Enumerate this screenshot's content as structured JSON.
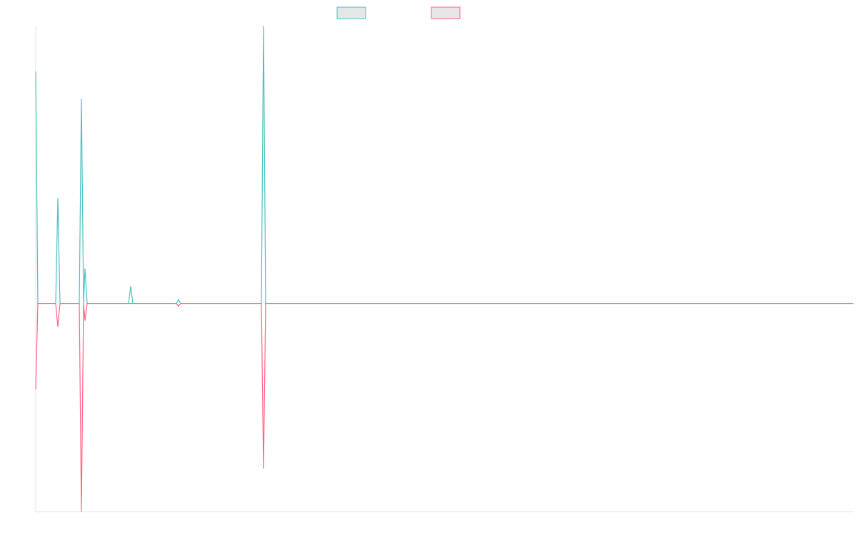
{
  "chart_data": {
    "type": "line",
    "x": [
      0,
      3,
      28,
      31,
      34,
      61,
      64,
      67,
      69,
      72,
      130,
      133,
      136,
      197,
      200,
      203,
      316,
      319,
      322,
      1145
    ],
    "series": [
      {
        "color": "#4bc0c0",
        "values": [
          0.835,
          0,
          0,
          0.379,
          0,
          0,
          0.737,
          0,
          0.126,
          0,
          0,
          0.062,
          0,
          0,
          0.013,
          0,
          0,
          1,
          0,
          0
        ]
      },
      {
        "color": "#ff6384",
        "values": [
          -0.309,
          0,
          0,
          -0.085,
          0,
          0,
          -0.75,
          0,
          -0.062,
          0,
          0,
          0,
          0,
          0,
          -0.01,
          0,
          0,
          -0.595,
          0,
          0
        ]
      }
    ],
    "xlim": [
      0,
      1145
    ],
    "ylim": [
      -0.75,
      1
    ]
  }
}
